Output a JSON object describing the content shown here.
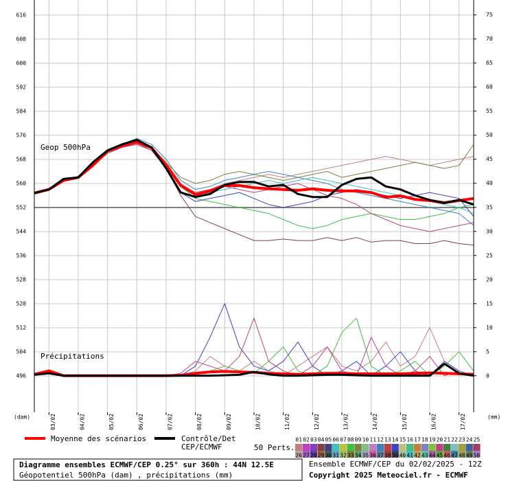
{
  "chart_data": {
    "type": "line",
    "annotations": [
      "Geop 500hPa",
      "Précipitations"
    ],
    "y_label": "(dam)",
    "y2_label": "(mm)",
    "x": [
      0,
      12,
      24,
      36,
      48,
      60,
      72,
      84,
      96,
      108,
      120,
      132,
      144,
      156,
      168,
      180,
      192,
      204,
      216,
      228,
      240,
      252,
      264,
      276,
      288,
      300,
      312,
      324,
      336,
      348,
      360
    ],
    "xlim": [
      0,
      360
    ],
    "xticks": [
      {
        "value": 12,
        "label": "03/02"
      },
      {
        "value": 36,
        "label": "04/02"
      },
      {
        "value": 60,
        "label": "05/02"
      },
      {
        "value": 84,
        "label": "06/02"
      },
      {
        "value": 108,
        "label": "07/02"
      },
      {
        "value": 132,
        "label": "08/02"
      },
      {
        "value": 156,
        "label": "09/02"
      },
      {
        "value": 180,
        "label": "10/02"
      },
      {
        "value": 204,
        "label": "11/02"
      },
      {
        "value": 228,
        "label": "12/02"
      },
      {
        "value": 252,
        "label": "13/02"
      },
      {
        "value": 276,
        "label": "14/02"
      },
      {
        "value": 300,
        "label": "15/02"
      },
      {
        "value": 324,
        "label": "16/02"
      },
      {
        "value": 348,
        "label": "17/02"
      }
    ],
    "ylim": [
      483.9,
      621
    ],
    "yticks": [
      496,
      504,
      512,
      520,
      528,
      536,
      544,
      552,
      560,
      568,
      576,
      584,
      592,
      600,
      608,
      616
    ],
    "y2lim": [
      -7.6,
      78.1
    ],
    "y2ticks": [
      0,
      5,
      10,
      15,
      20,
      25,
      30,
      35,
      40,
      45,
      50,
      55,
      60,
      65,
      70,
      75
    ],
    "reference_line": 552,
    "grid": true,
    "series": [
      {
        "name": "Moyenne des scénarios",
        "color": "#ff0000",
        "values": [
          556.8,
          558,
          561,
          562,
          566,
          570.7,
          572.6,
          573.7,
          571.9,
          566,
          559.3,
          556.3,
          557.5,
          559.3,
          559.3,
          558.6,
          558.2,
          558,
          557.7,
          558.2,
          557.7,
          557.5,
          557.5,
          557,
          555.4,
          555.9,
          554.7,
          554.3,
          553.6,
          554.3,
          555
        ],
        "precip": [
          0.3,
          1,
          0,
          0,
          0,
          0,
          0,
          0,
          0,
          0,
          0.1,
          0.5,
          0.8,
          0.9,
          0.8,
          0.7,
          0.5,
          0.4,
          0.3,
          0.4,
          0.5,
          0.5,
          0.4,
          0.4,
          0.4,
          0.4,
          0.5,
          0.6,
          0.5,
          0.4,
          0.3
        ]
      },
      {
        "name": "Contrôle/Det",
        "subname": "CEP/ECMWF",
        "color": "#000000",
        "values": [
          556.8,
          558,
          561.5,
          562,
          567,
          571,
          573,
          574.5,
          572,
          565,
          557,
          555.5,
          556.5,
          559.5,
          560.5,
          560.5,
          559,
          559.5,
          556.5,
          555.5,
          555.5,
          559.5,
          561.5,
          562,
          559,
          558,
          556,
          554.5,
          553.5,
          554.5,
          553
        ],
        "precip": [
          0.2,
          0.5,
          0,
          0,
          0,
          0,
          0,
          0,
          0,
          0,
          0,
          0,
          0,
          0.1,
          0.2,
          0.8,
          0.3,
          0,
          0,
          0.1,
          0.2,
          0.2,
          0.1,
          0,
          0,
          0,
          0,
          0,
          2.5,
          0.5,
          0
        ]
      }
    ],
    "members_label": "50 Perts.",
    "members": [
      {
        "name": "01",
        "color": "#c08080",
        "values": [
          556.8,
          558,
          561,
          562,
          566,
          571,
          573,
          574,
          572,
          567,
          560,
          557,
          558,
          560,
          561,
          562,
          563,
          562,
          563,
          564,
          565,
          566,
          567,
          568,
          569,
          568,
          567,
          566,
          567,
          568,
          569
        ],
        "precip": [
          0.3,
          0.7,
          0,
          0,
          0,
          0,
          0,
          0,
          0,
          0,
          0,
          1,
          4,
          2,
          1,
          3,
          1,
          0,
          2,
          4,
          6,
          2,
          1,
          3,
          7,
          2,
          4,
          10,
          3,
          1,
          0
        ]
      },
      {
        "name": "02",
        "color": "#c040c0"
      },
      {
        "name": "03",
        "color": "#8040c0"
      },
      {
        "name": "04",
        "color": "#804040",
        "values": [
          556.8,
          558,
          561,
          562,
          566,
          570.5,
          572.5,
          573.5,
          571.5,
          565,
          556,
          549,
          547,
          545,
          543,
          541,
          541,
          541.5,
          541,
          541,
          542,
          541,
          542,
          540.5,
          541,
          541,
          540,
          540,
          541,
          540,
          539.5
        ]
      },
      {
        "name": "05",
        "color": "#404080"
      },
      {
        "name": "06",
        "color": "#40c0c0"
      },
      {
        "name": "07",
        "color": "#c0c040"
      },
      {
        "name": "08",
        "color": "#40c040",
        "values": [
          556.8,
          558,
          561,
          562,
          566,
          570,
          572,
          573.5,
          571,
          566,
          559,
          555,
          554,
          553,
          552,
          551,
          550,
          548,
          546,
          545,
          546,
          548,
          549,
          550,
          549,
          548,
          548,
          549,
          550,
          552,
          553
        ],
        "precip": [
          0.2,
          0.5,
          0,
          0,
          0,
          0,
          0,
          0,
          0,
          0,
          0,
          0.5,
          1,
          2,
          1,
          0.5,
          3,
          6,
          1,
          0,
          2,
          9,
          12,
          2,
          0,
          1,
          3,
          0,
          2,
          5,
          1
        ]
      },
      {
        "name": "09",
        "color": "#808040"
      },
      {
        "name": "10",
        "color": "#80c080"
      },
      {
        "name": "11",
        "color": "#c080c0"
      },
      {
        "name": "12",
        "color": "#4080c0",
        "values": [
          556.8,
          558,
          561,
          562,
          566,
          571,
          573,
          575,
          573,
          568,
          561,
          558,
          559,
          561,
          562,
          563,
          564,
          563,
          562,
          561,
          560,
          558,
          557,
          556,
          555,
          554,
          553,
          552,
          551,
          550,
          546
        ]
      },
      {
        "name": "13",
        "color": "#c04040"
      },
      {
        "name": "14",
        "color": "#4040c0",
        "values": [
          556.8,
          558,
          561,
          562,
          566,
          570,
          572,
          573,
          571,
          565,
          557,
          554,
          555,
          556,
          557,
          555,
          553,
          552,
          553,
          554,
          556,
          557,
          558,
          557,
          556,
          555,
          556,
          557,
          556,
          555,
          549
        ],
        "precip": [
          0.5,
          1,
          0,
          0,
          0,
          0,
          0,
          0,
          0,
          0,
          0,
          2,
          8,
          15,
          6,
          2,
          1,
          3,
          7,
          2,
          0,
          1,
          3,
          0,
          2,
          5,
          1,
          0,
          3,
          1,
          0
        ]
      },
      {
        "name": "15",
        "color": "#c0c080"
      },
      {
        "name": "16",
        "color": "#40c080"
      },
      {
        "name": "17",
        "color": "#c08040"
      },
      {
        "name": "18",
        "color": "#8080c0"
      },
      {
        "name": "19",
        "color": "#80c040"
      },
      {
        "name": "20",
        "color": "#c04080",
        "values": [
          556.8,
          558,
          561,
          562,
          566,
          570,
          572,
          573,
          571,
          566,
          559,
          557,
          558,
          559,
          558,
          557,
          558,
          559,
          560,
          558,
          556,
          555,
          553,
          550,
          548,
          546,
          545,
          544,
          545,
          546,
          547
        ],
        "precip": [
          0.3,
          0.8,
          0,
          0,
          0,
          0,
          0,
          0,
          0,
          0,
          0.5,
          3,
          2,
          1,
          4,
          12,
          3,
          1,
          0,
          2,
          6,
          1,
          0,
          8,
          2,
          0,
          1,
          4,
          0,
          1,
          0
        ]
      },
      {
        "name": "21",
        "color": "#408040"
      },
      {
        "name": "22",
        "color": "#80c0c0"
      },
      {
        "name": "23",
        "color": "#a0a040"
      },
      {
        "name": "24",
        "color": "#4060a0"
      },
      {
        "name": "25",
        "color": "#a04060"
      },
      {
        "name": "26",
        "color": "#c0a0a0"
      },
      {
        "name": "27",
        "color": "#a060c0"
      },
      {
        "name": "28",
        "color": "#6040a0"
      },
      {
        "name": "29",
        "color": "#a06040"
      },
      {
        "name": "30",
        "color": "#406060"
      },
      {
        "name": "31",
        "color": "#60a0c0"
      },
      {
        "name": "32",
        "color": "#a0c060"
      },
      {
        "name": "33",
        "color": "#808040",
        "values": [
          556.8,
          558,
          561,
          562,
          566,
          571,
          573,
          574,
          572,
          567,
          562,
          560,
          561,
          563,
          564,
          563,
          562,
          561,
          562,
          563,
          564,
          562,
          563,
          564,
          565,
          566,
          567,
          566,
          565,
          566,
          573
        ]
      },
      {
        "name": "34",
        "color": "#60a060"
      },
      {
        "name": "35",
        "color": "#a0a0c0"
      },
      {
        "name": "36",
        "color": "#c060a0"
      },
      {
        "name": "37",
        "color": "#6080a0"
      },
      {
        "name": "38",
        "color": "#a04040"
      },
      {
        "name": "39",
        "color": "#404060"
      },
      {
        "name": "40",
        "color": "#a0c0a0"
      },
      {
        "name": "41",
        "color": "#40c0c0",
        "values": [
          556.8,
          558,
          561,
          562,
          566,
          570,
          572.5,
          574,
          572,
          566,
          560,
          556,
          557,
          558,
          559,
          560,
          561,
          560,
          561,
          562,
          561,
          560,
          559,
          558,
          557,
          556,
          555,
          554,
          553,
          552,
          550
        ]
      },
      {
        "name": "42",
        "color": "#c0a060"
      },
      {
        "name": "43",
        "color": "#60c0a0"
      },
      {
        "name": "44",
        "color": "#a060a0"
      },
      {
        "name": "45",
        "color": "#60a040"
      },
      {
        "name": "46",
        "color": "#c06060"
      },
      {
        "name": "47",
        "color": "#4080a0"
      },
      {
        "name": "48",
        "color": "#a0a060"
      },
      {
        "name": "49",
        "color": "#608060"
      },
      {
        "name": "50",
        "color": "#a080c0"
      }
    ],
    "footer": {
      "title": "Diagramme ensembles ECMWF/CEP 0.25° sur 360h : 44N 12.5E",
      "subtitle": "Géopotentiel 500hPa (dam) , précipitations (mm)",
      "run": "Ensemble ECMWF/CEP du 02/02/2025 - 12Z",
      "copyright": "Copyright 2025 Meteociel.fr - ECMWF"
    }
  }
}
